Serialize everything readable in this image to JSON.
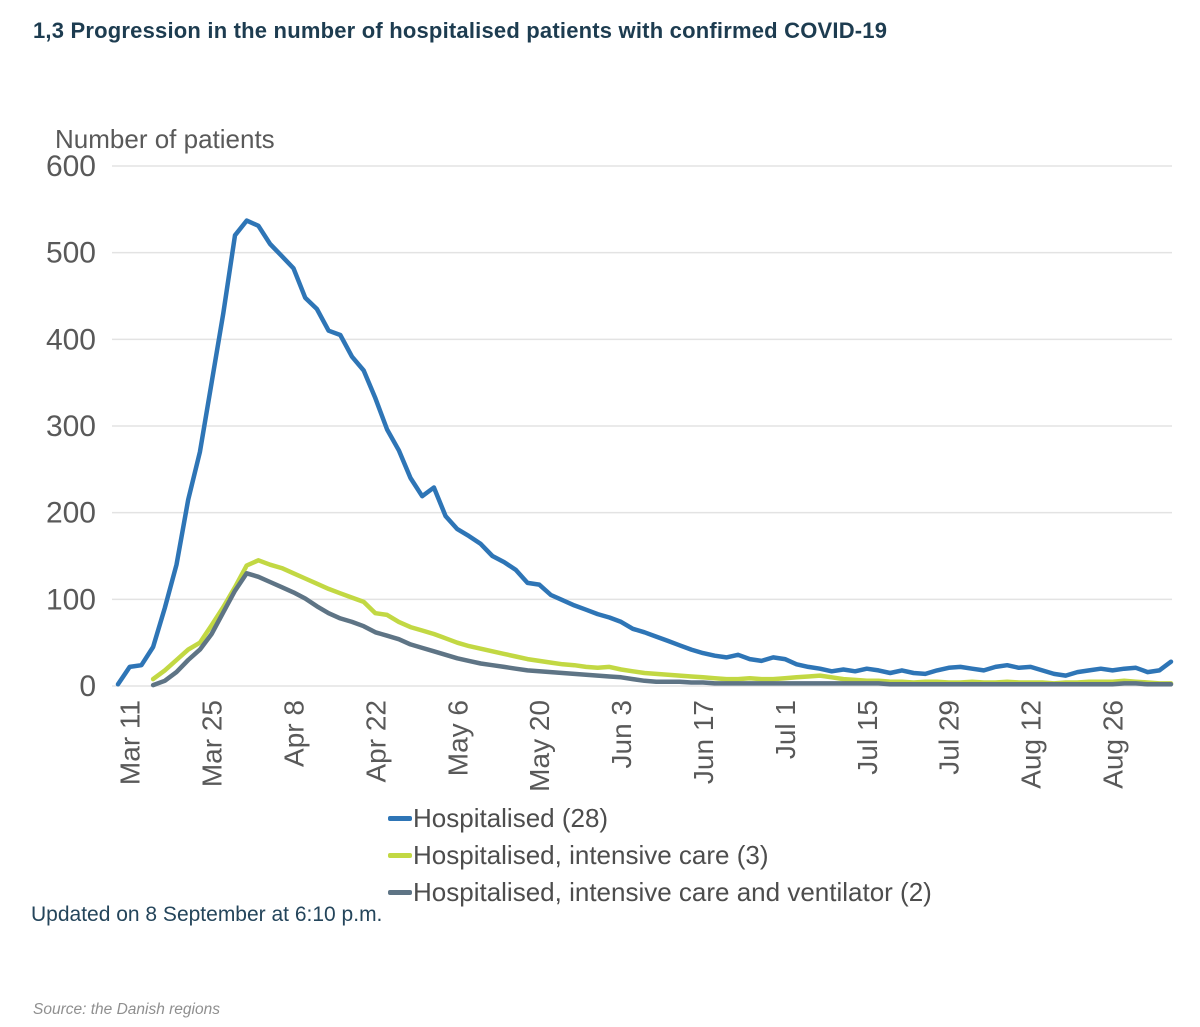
{
  "header": {
    "title": "1,3 Progression in the number of hospitalised patients with confirmed COVID-19"
  },
  "footer": {
    "updated": "Updated on 8 September at 6:10 p.m.",
    "source": "Source: the Danish regions"
  },
  "chart_data": {
    "type": "line",
    "title": "1,3 Progression in the number of hospitalised patients with confirmed COVID-19",
    "ylabel": "Number of patients",
    "xlabel": "",
    "ylim": [
      0,
      600
    ],
    "y_ticks": [
      600,
      500,
      400,
      300,
      200,
      100,
      0
    ],
    "x_tick_labels": [
      "Mar 11",
      "Mar 25",
      "Apr 8",
      "Apr 22",
      "May 6",
      "May 20",
      "Jun 3",
      "Jun 17",
      "Jul 1",
      "Jul 15",
      "Jul 29",
      "Aug 12",
      "Aug 26"
    ],
    "x_tick_days": [
      2,
      16,
      30,
      44,
      58,
      72,
      86,
      100,
      114,
      128,
      142,
      156,
      170
    ],
    "start_date": "Mar 9",
    "step_days": 2,
    "grid": "horizontal-only",
    "legend_position": "bottom",
    "background": "#ffffff",
    "gridline_color": "#e3e3e3",
    "axis_text_color": "#595959",
    "series": [
      {
        "name": "Hospitalised (28)",
        "key": "hospitalised",
        "color": "#2e75b6",
        "current_value": 28,
        "values": [
          2,
          22,
          24,
          45,
          90,
          140,
          215,
          270,
          350,
          430,
          520,
          537,
          531,
          510,
          496,
          482,
          448,
          435,
          410,
          405,
          380,
          364,
          332,
          296,
          272,
          240,
          219,
          229,
          196,
          181,
          173,
          164,
          150,
          143,
          134,
          119,
          117,
          105,
          99,
          93,
          88,
          83,
          79,
          74,
          66,
          62,
          57,
          52,
          47,
          42,
          38,
          35,
          33,
          36,
          31,
          29,
          33,
          31,
          25,
          22,
          20,
          17,
          19,
          17,
          20,
          18,
          15,
          18,
          15,
          14,
          18,
          21,
          22,
          20,
          18,
          22,
          24,
          21,
          22,
          18,
          14,
          12,
          16,
          18,
          20,
          18,
          20,
          21,
          16,
          18,
          28
        ]
      },
      {
        "name": "Hospitalised, intensive care (3)",
        "key": "intensive-care",
        "color": "#c2d843",
        "current_value": 3,
        "values": [
          null,
          null,
          null,
          8,
          18,
          30,
          42,
          50,
          70,
          91,
          114,
          139,
          145,
          140,
          136,
          130,
          124,
          118,
          112,
          107,
          102,
          97,
          84,
          82,
          74,
          68,
          64,
          60,
          55,
          50,
          46,
          43,
          40,
          37,
          34,
          31,
          29,
          27,
          25,
          24,
          22,
          21,
          22,
          19,
          17,
          15,
          14,
          13,
          12,
          11,
          10,
          9,
          8,
          8,
          9,
          8,
          8,
          9,
          10,
          11,
          12,
          10,
          8,
          7,
          6,
          6,
          5,
          5,
          4,
          5,
          5,
          4,
          4,
          5,
          4,
          4,
          5,
          4,
          4,
          4,
          3,
          4,
          4,
          5,
          5,
          5,
          6,
          5,
          4,
          3,
          3
        ]
      },
      {
        "name": "Hospitalised, intensive care and ventilator (2)",
        "key": "ventilator",
        "color": "#5e7485",
        "current_value": 2,
        "values": [
          null,
          null,
          null,
          1,
          6,
          16,
          30,
          42,
          60,
          85,
          110,
          130,
          126,
          120,
          114,
          108,
          101,
          92,
          84,
          78,
          74,
          69,
          62,
          58,
          54,
          48,
          44,
          40,
          36,
          32,
          29,
          26,
          24,
          22,
          20,
          18,
          17,
          16,
          15,
          14,
          13,
          12,
          11,
          10,
          8,
          6,
          5,
          5,
          5,
          4,
          4,
          3,
          3,
          3,
          3,
          3,
          3,
          3,
          3,
          3,
          3,
          3,
          3,
          3,
          3,
          3,
          2,
          2,
          2,
          2,
          2,
          2,
          2,
          2,
          2,
          2,
          2,
          2,
          2,
          2,
          2,
          2,
          2,
          2,
          2,
          2,
          3,
          3,
          2,
          2,
          2
        ]
      }
    ]
  }
}
